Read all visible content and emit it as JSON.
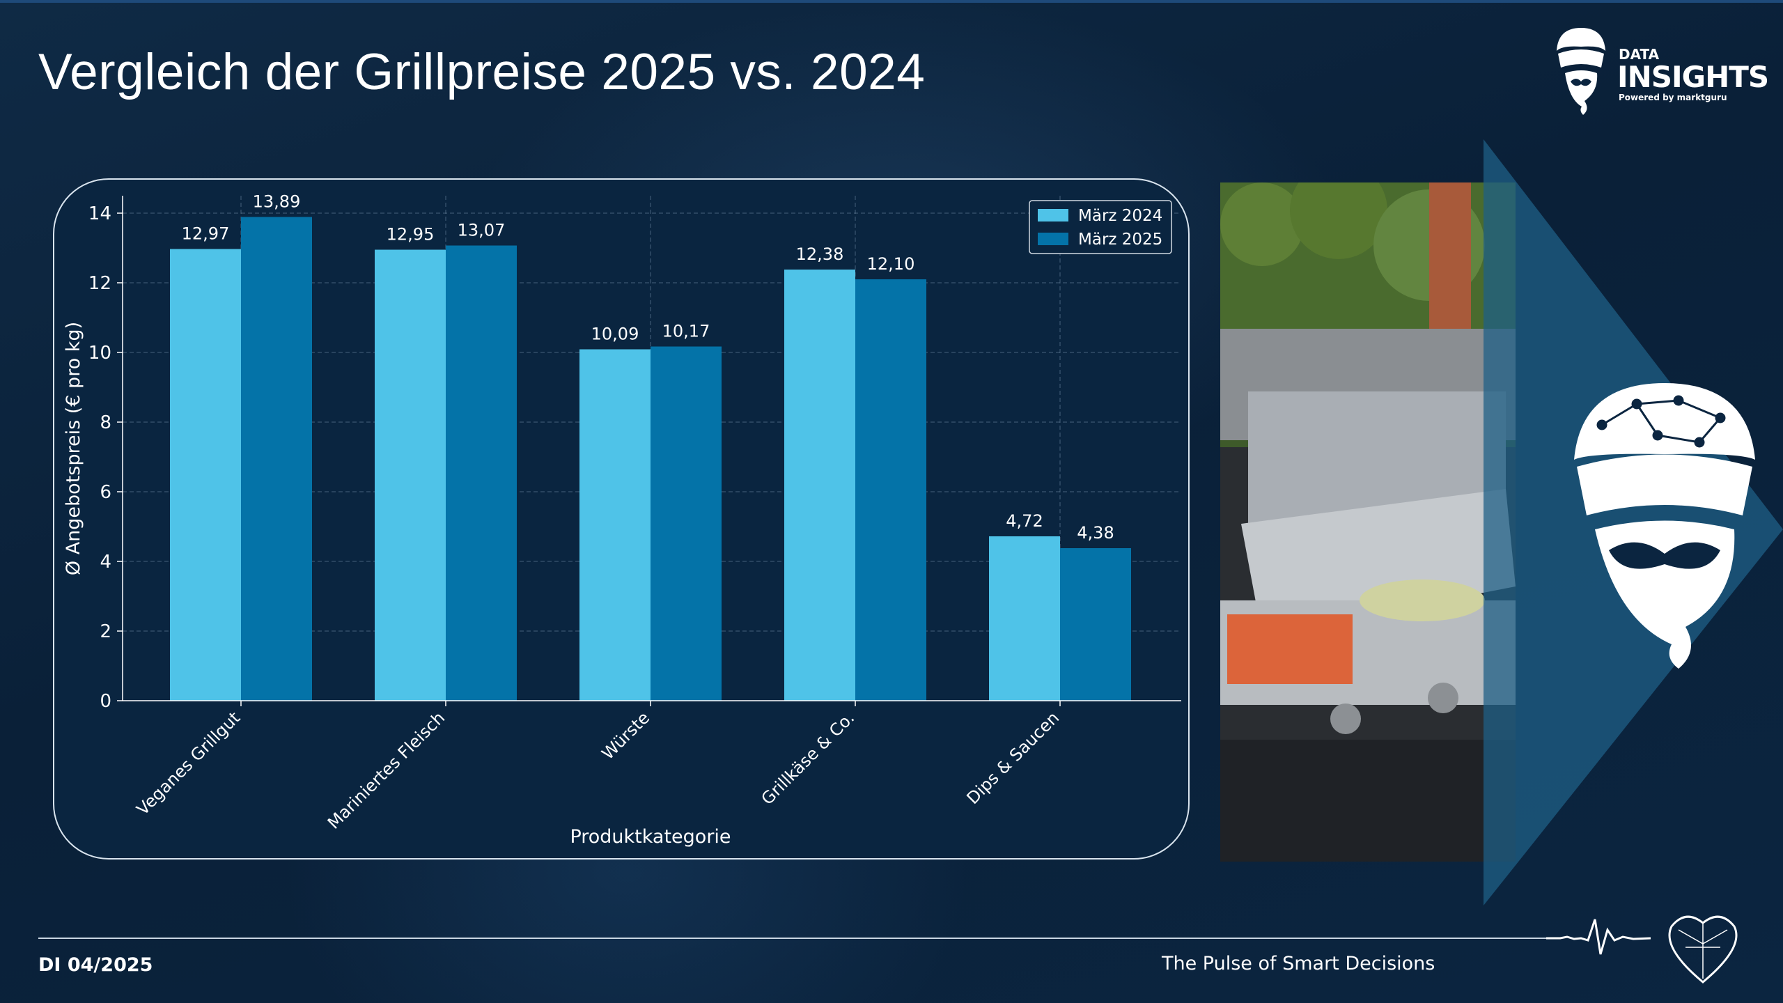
{
  "page": {
    "title": "Vergleich der Grillpreise 2025 vs. 2024",
    "footer_left": "DI 04/2025",
    "footer_right": "The Pulse of Smart Decisions",
    "colors": {
      "background": "#0b2540",
      "series_2024": "#4fc3e8",
      "series_2025": "#0473a8",
      "panel_border": "#d9e4ee"
    }
  },
  "logo": {
    "line1": "DATA",
    "line2": "INSIGHTS",
    "line3": "Powered by marktguru",
    "icon": "guru-turban-icon"
  },
  "chart_data": {
    "type": "bar",
    "categories": [
      "Veganes Grillgut",
      "Mariniertes Fleisch",
      "Würste",
      "Grillkäse & Co.",
      "Dips & Saucen"
    ],
    "series": [
      {
        "name": "März 2024",
        "values": [
          12.97,
          12.95,
          10.09,
          12.38,
          4.72
        ],
        "labels": [
          "12,97",
          "12,95",
          "10,09",
          "12,38",
          "4,72"
        ],
        "color": "#4fc3e8"
      },
      {
        "name": "März 2025",
        "values": [
          13.89,
          13.07,
          10.17,
          12.1,
          4.38
        ],
        "labels": [
          "13,89",
          "13,07",
          "10,17",
          "12,10",
          "4,38"
        ],
        "color": "#0473a8"
      }
    ],
    "xlabel": "Produktkategorie",
    "ylabel": "Ø Angebotspreis (€ pro kg)",
    "ylim": [
      0,
      14
    ],
    "yticks": [
      0,
      2,
      4,
      6,
      8,
      10,
      12,
      14
    ],
    "grid": true,
    "legend_position": "top-right"
  }
}
